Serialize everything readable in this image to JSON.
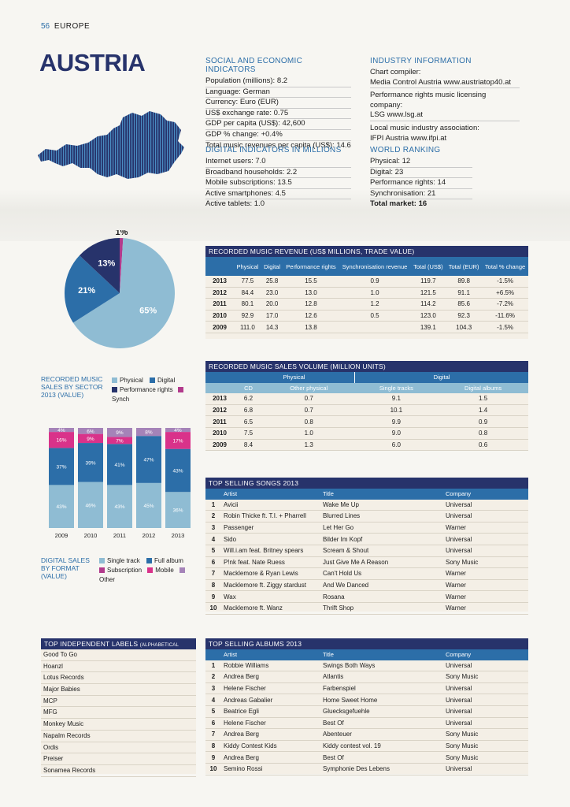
{
  "header": {
    "page_number": "56",
    "section": "EUROPE"
  },
  "country": {
    "name": "AUSTRIA"
  },
  "social": {
    "title": "SOCIAL AND ECONOMIC INDICATORS",
    "items": [
      "Population (millions): 8.2",
      "Language: German",
      "Currency: Euro (EUR)",
      "US$ exchange rate: 0.75",
      "GDP per capita (US$): 42,600",
      "GDP % change: +0.4%",
      "Total music revenues per capita (US$): 14.6"
    ]
  },
  "digital": {
    "title": "DIGITAL INDICATORS IN MILLIONS",
    "items": [
      "Internet users: 7.0",
      "Broadband households: 2.2",
      "Mobile subscriptions: 13.5",
      "Active smartphones: 4.5",
      "Active tablets: 1.0"
    ]
  },
  "industry": {
    "title": "INDUSTRY INFORMATION",
    "items": [
      "Chart compiler:",
      "Media Control Austria www.austriatop40.at",
      "Performance rights music licensing company:",
      "LSG www.lsg.at",
      "Local music industry association:",
      "IFPI Austria www.ifpi.at"
    ]
  },
  "ranking": {
    "title": "WORLD RANKING",
    "items": [
      "Physical: 12",
      "Digital: 23",
      "Performance rights: 14",
      "Synchronisation: 21"
    ],
    "total": "Total market: 16"
  },
  "colors": {
    "physical": "#8fbcd3",
    "digital": "#2c6ea8",
    "performance": "#27336b",
    "synch": "#b23a8c",
    "mobile": "#d9328a",
    "other": "#a583b8",
    "navy": "#27336b"
  },
  "pie": {
    "title": [
      "RECORDED MUSIC",
      "SALES BY SECTOR",
      "2013 (VALUE)"
    ],
    "legend": [
      "Physical",
      "Digital",
      "Performance rights",
      "Synch"
    ],
    "chart_data": {
      "type": "pie",
      "labels": [
        "Physical",
        "Digital",
        "Performance rights",
        "Synch"
      ],
      "values": [
        65,
        21,
        13,
        1
      ],
      "value_labels": [
        "65%",
        "21%",
        "13%",
        "1%"
      ]
    }
  },
  "bars": {
    "title": [
      "DIGITAL SALES",
      "BY FORMAT",
      "(VALUE)"
    ],
    "legend": [
      "Single track",
      "Full album",
      "Subscription",
      "Mobile",
      "Other"
    ],
    "chart_data": {
      "type": "bar",
      "stacked": true,
      "categories": [
        "2009",
        "2010",
        "2011",
        "2012",
        "2013"
      ],
      "series": [
        {
          "name": "Single track",
          "values": [
            43,
            46,
            43,
            45,
            36
          ],
          "labels": [
            "43%",
            "46%",
            "43%",
            "45%",
            "36%"
          ]
        },
        {
          "name": "Full album",
          "values": [
            37,
            39,
            41,
            47,
            43
          ],
          "labels": [
            "37%",
            "39%",
            "41%",
            "47%",
            "43%"
          ]
        },
        {
          "name": "Subscription",
          "values": [
            0,
            0,
            0,
            0,
            0
          ],
          "labels": [
            "",
            "",
            "",
            "",
            ""
          ]
        },
        {
          "name": "Mobile",
          "values": [
            16,
            9,
            7,
            0,
            17
          ],
          "labels": [
            "16%",
            "9%",
            "7%",
            "",
            "17%"
          ]
        },
        {
          "name": "Other",
          "values": [
            4,
            6,
            9,
            8,
            4
          ],
          "labels": [
            "4%",
            "6%",
            "9%",
            "8%",
            "4%"
          ]
        }
      ]
    }
  },
  "revenue": {
    "title": "RECORDED MUSIC REVENUE (US$ MILLIONS, TRADE VALUE)",
    "columns": [
      "",
      "Physical",
      "Digital",
      "Performance rights",
      "Synchronisation revenue",
      "Total (US$)",
      "Total (EUR)",
      "Total % change"
    ],
    "rows": [
      [
        "2013",
        "77.5",
        "25.8",
        "15.5",
        "0.9",
        "119.7",
        "89.8",
        "-1.5%"
      ],
      [
        "2012",
        "84.4",
        "23.0",
        "13.0",
        "1.0",
        "121.5",
        "91.1",
        "+6.5%"
      ],
      [
        "2011",
        "80.1",
        "20.0",
        "12.8",
        "1.2",
        "114.2",
        "85.6",
        "-7.2%"
      ],
      [
        "2010",
        "92.9",
        "17.0",
        "12.6",
        "0.5",
        "123.0",
        "92.3",
        "-11.6%"
      ],
      [
        "2009",
        "111.0",
        "14.3",
        "13.8",
        "",
        "139.1",
        "104.3",
        "-1.5%"
      ]
    ]
  },
  "volume": {
    "title": "RECORDED MUSIC SALES VOLUME (MILLION UNITS)",
    "groups": [
      "Physical",
      "Digital"
    ],
    "columns": [
      "",
      "CD",
      "Other physical",
      "Single tracks",
      "Digital albums"
    ],
    "rows": [
      [
        "2013",
        "6.2",
        "0.7",
        "9.1",
        "1.5"
      ],
      [
        "2012",
        "6.8",
        "0.7",
        "10.1",
        "1.4"
      ],
      [
        "2011",
        "6.5",
        "0.8",
        "9.9",
        "0.9"
      ],
      [
        "2010",
        "7.5",
        "1.0",
        "9.0",
        "0.8"
      ],
      [
        "2009",
        "8.4",
        "1.3",
        "6.0",
        "0.6"
      ]
    ]
  },
  "songs": {
    "title": "TOP SELLING SONGS 2013",
    "columns": [
      "",
      "Artist",
      "Title",
      "Company"
    ],
    "rows": [
      [
        "1",
        "Avicii",
        "Wake Me Up",
        "Universal"
      ],
      [
        "2",
        "Robin Thicke ft. T.I. + Pharrell",
        "Blurred Lines",
        "Universal"
      ],
      [
        "3",
        "Passenger",
        "Let Her Go",
        "Warner"
      ],
      [
        "4",
        "Sido",
        "Bilder Im Kopf",
        "Universal"
      ],
      [
        "5",
        "Will.i.am feat. Britney spears",
        "Scream & Shout",
        "Universal"
      ],
      [
        "6",
        "P!nk feat. Nate Ruess",
        "Just Give Me A Reason",
        "Sony Music"
      ],
      [
        "7",
        "Macklemore & Ryan Lewis",
        "Can't Hold Us",
        "Warner"
      ],
      [
        "8",
        "Macklemore ft. Ziggy stardust",
        "And We Danced",
        "Warner"
      ],
      [
        "9",
        "Wax",
        "Rosana",
        "Warner"
      ],
      [
        "10",
        "Macklemore ft. Wanz",
        "Thrift Shop",
        "Warner"
      ]
    ]
  },
  "labels": {
    "title": "TOP INDEPENDENT LABELS",
    "subtitle": "(ALPHABETICAL ORDER)",
    "items": [
      "Good To Go",
      "Hoanzl",
      "Lotus Records",
      "Major Babies",
      "MCP",
      "MFG",
      "Monkey Music",
      "Napalm Records",
      "Ordis",
      "Preiser",
      "Sonamea Records"
    ]
  },
  "albums": {
    "title": "TOP SELLING ALBUMS 2013",
    "columns": [
      "",
      "Artist",
      "Title",
      "Company"
    ],
    "rows": [
      [
        "1",
        "Robbie Williams",
        "Swings Both Ways",
        "Universal"
      ],
      [
        "2",
        "Andrea Berg",
        "Atlantis",
        "Sony Music"
      ],
      [
        "3",
        "Helene Fischer",
        "Farbenspiel",
        "Universal"
      ],
      [
        "4",
        "Andreas Gabalier",
        "Home Sweet Home",
        "Universal"
      ],
      [
        "5",
        "Beatrice Egli",
        "Gluecksgefuehle",
        "Universal"
      ],
      [
        "6",
        "Helene Fischer",
        "Best Of",
        "Universal"
      ],
      [
        "7",
        "Andrea Berg",
        "Abenteuer",
        "Sony Music"
      ],
      [
        "8",
        "Kiddy Contest Kids",
        "Kiddy contest vol. 19",
        "Sony Music"
      ],
      [
        "9",
        "Andrea Berg",
        "Best Of",
        "Sony Music"
      ],
      [
        "10",
        "Semino Rossi",
        "Symphonie Des Lebens",
        "Universal"
      ]
    ]
  }
}
